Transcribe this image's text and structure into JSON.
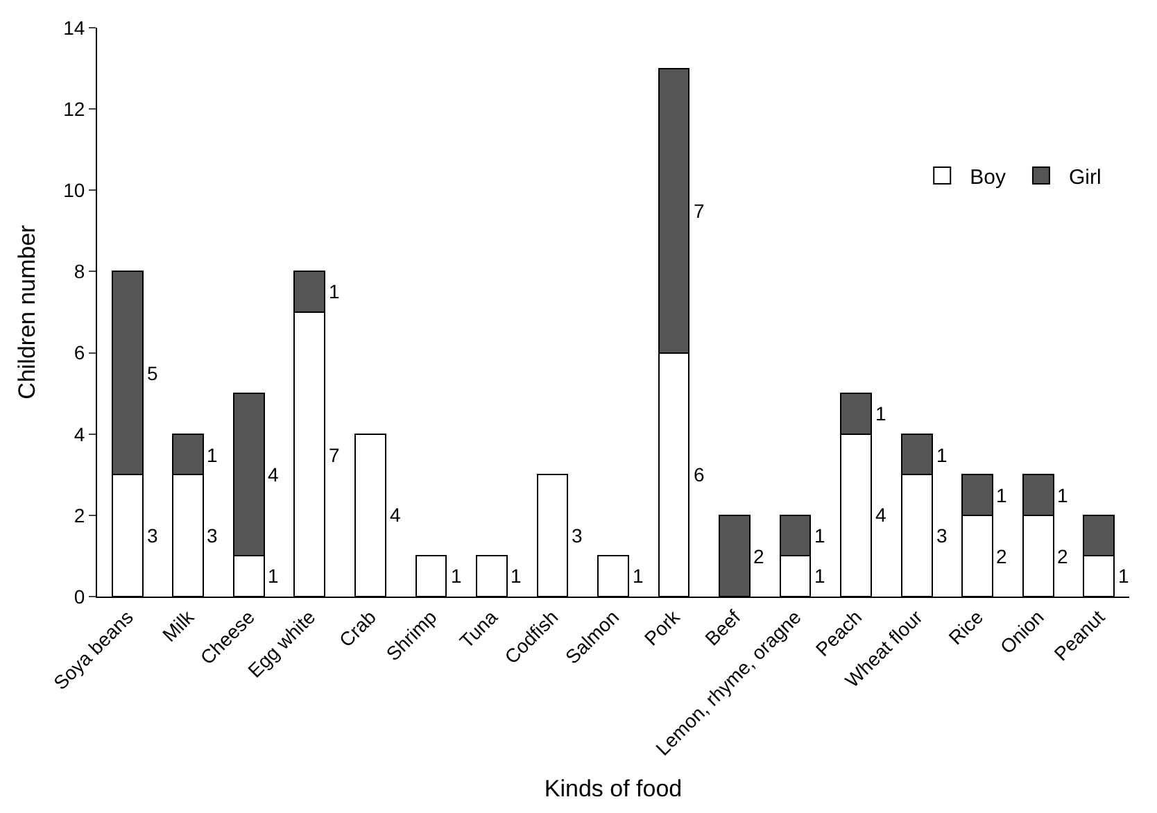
{
  "chart_data": {
    "type": "bar",
    "stacked": true,
    "xlabel": "Kinds of food",
    "ylabel": "Children number",
    "categories": [
      "Soya beans",
      "Milk",
      "Cheese",
      "Egg white",
      "Crab",
      "Shrimp",
      "Tuna",
      "Codfish",
      "Salmon",
      "Pork",
      "Beef",
      "Lemon, rhyme, oragne",
      "Peach",
      "Wheat flour",
      "Rice",
      "Onion",
      "Peanut"
    ],
    "series": [
      {
        "name": "Boy",
        "color": "#ffffff",
        "values": [
          3,
          3,
          1,
          7,
          4,
          1,
          1,
          3,
          1,
          6,
          0,
          1,
          4,
          3,
          2,
          2,
          1
        ],
        "value_labels": [
          "3",
          "3",
          "1",
          "7",
          "4",
          "1",
          "1",
          "3",
          "1",
          "6",
          null,
          "1",
          "4",
          "3",
          "2",
          "2",
          "1"
        ]
      },
      {
        "name": "Girl",
        "color": "#555555",
        "values": [
          5,
          1,
          4,
          1,
          0,
          0,
          0,
          0,
          0,
          7,
          2,
          1,
          1,
          1,
          1,
          1,
          1
        ],
        "value_labels": [
          "5",
          "1",
          "4",
          "1",
          null,
          null,
          null,
          null,
          null,
          "7",
          "2",
          "1",
          "1",
          "1",
          "1",
          "1",
          null
        ]
      }
    ],
    "ylim": [
      0,
      14
    ],
    "yticks": [
      0,
      2,
      4,
      6,
      8,
      10,
      12,
      14
    ],
    "legend": "top right"
  }
}
